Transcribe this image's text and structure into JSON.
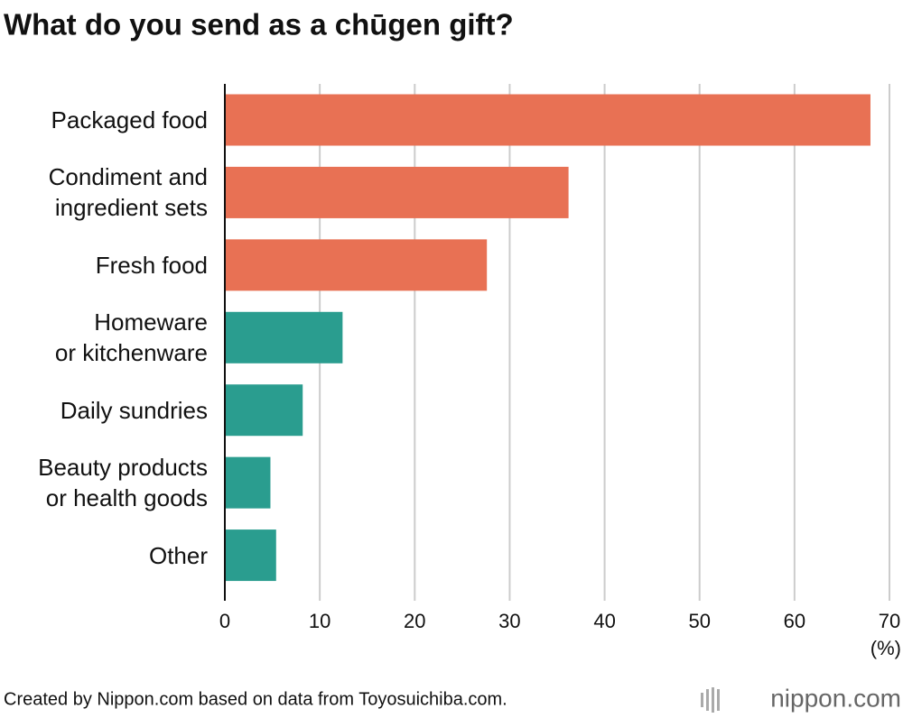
{
  "chart_data": {
    "type": "barh",
    "title": "What do you send as a chūgen gift?",
    "categories": [
      "Packaged food",
      "Condiment and\ningredient sets",
      "Fresh food",
      "Homeware\nor kitchenware",
      "Daily sundries",
      "Beauty products\nor health goods",
      "Other"
    ],
    "values": [
      68,
      36.2,
      27.6,
      12.4,
      8.2,
      4.8,
      5.4
    ],
    "colors": [
      "#e87154",
      "#e87154",
      "#e87154",
      "#2a9d8f",
      "#2a9d8f",
      "#2a9d8f",
      "#2a9d8f"
    ],
    "xlim": [
      0,
      70
    ],
    "xticks": [
      0,
      10,
      20,
      30,
      40,
      50,
      60,
      70
    ],
    "x_label": "(%)",
    "grid": true,
    "source": "Created by Nippon.com based on data from Toyosuichiba.com.",
    "logo": "nippon.com"
  }
}
